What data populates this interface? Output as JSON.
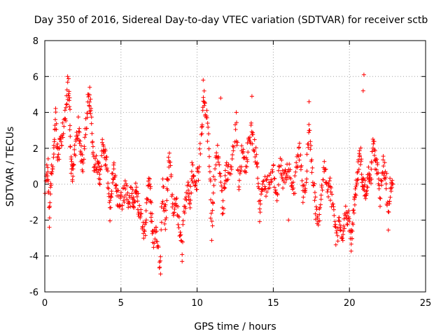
{
  "chart_data": {
    "type": "scatter",
    "title": "Day 350 of 2016, Sidereal Day-to-day VTEC variation (SDTVAR) for receiver sctb",
    "xlabel": "GPS time / hours",
    "ylabel": "SDTVAR / TECUs",
    "xlim": [
      0,
      25
    ],
    "ylim": [
      -6,
      8
    ],
    "xticks": [
      0,
      5,
      10,
      15,
      20,
      25
    ],
    "yticks": [
      -6,
      -4,
      -2,
      0,
      2,
      4,
      6,
      8
    ],
    "grid": true,
    "marker": "+",
    "series": [
      {
        "name": "SDTVAR",
        "color": "#ff0000",
        "anchors": [
          [
            0.05,
            0.0
          ],
          [
            0.2,
            1.2
          ],
          [
            0.3,
            -2.0
          ],
          [
            0.45,
            0.8
          ],
          [
            0.6,
            1.6
          ],
          [
            0.7,
            3.8
          ],
          [
            0.85,
            1.5
          ],
          [
            1.0,
            2.2
          ],
          [
            1.2,
            3.0
          ],
          [
            1.4,
            4.0
          ],
          [
            1.55,
            5.6
          ],
          [
            1.65,
            3.5
          ],
          [
            1.75,
            1.0
          ],
          [
            1.85,
            0.6
          ],
          [
            2.0,
            2.0
          ],
          [
            2.2,
            3.3
          ],
          [
            2.35,
            2.0
          ],
          [
            2.5,
            1.0
          ],
          [
            2.7,
            3.2
          ],
          [
            2.85,
            5.0
          ],
          [
            3.0,
            4.3
          ],
          [
            3.15,
            1.8
          ],
          [
            3.3,
            0.9
          ],
          [
            3.5,
            1.3
          ],
          [
            3.6,
            0.0
          ],
          [
            3.8,
            2.6
          ],
          [
            3.95,
            1.5
          ],
          [
            4.1,
            1.0
          ],
          [
            4.25,
            -1.8
          ],
          [
            4.4,
            0.0
          ],
          [
            4.55,
            1.0
          ],
          [
            4.7,
            -0.5
          ],
          [
            4.9,
            -1.0
          ],
          [
            5.1,
            -0.8
          ],
          [
            5.3,
            -0.3
          ],
          [
            5.5,
            -1.0
          ],
          [
            5.7,
            -0.6
          ],
          [
            5.85,
            -0.9
          ],
          [
            6.0,
            0.0
          ],
          [
            6.15,
            -1.2
          ],
          [
            6.35,
            -2.0
          ],
          [
            6.55,
            -3.0
          ],
          [
            6.7,
            -0.6
          ],
          [
            6.9,
            0.0
          ],
          [
            7.0,
            -1.8
          ],
          [
            7.15,
            -3.2
          ],
          [
            7.35,
            -2.5
          ],
          [
            7.55,
            -4.7
          ],
          [
            7.75,
            0.0
          ],
          [
            7.9,
            -2.2
          ],
          [
            8.05,
            0.0
          ],
          [
            8.2,
            1.6
          ],
          [
            8.4,
            -1.4
          ],
          [
            8.6,
            -1.1
          ],
          [
            8.8,
            -2.0
          ],
          [
            9.0,
            -3.8
          ],
          [
            9.2,
            -1.0
          ],
          [
            9.4,
            -0.2
          ],
          [
            9.55,
            -0.8
          ],
          [
            9.7,
            1.0
          ],
          [
            9.85,
            -0.2
          ],
          [
            10.05,
            0.4
          ],
          [
            10.3,
            2.8
          ],
          [
            10.45,
            5.0
          ],
          [
            10.6,
            3.8
          ],
          [
            10.8,
            2.0
          ],
          [
            10.95,
            -2.6
          ],
          [
            11.1,
            0.0
          ],
          [
            11.3,
            2.0
          ],
          [
            11.5,
            0.6
          ],
          [
            11.7,
            -1.6
          ],
          [
            11.85,
            0.6
          ],
          [
            12.05,
            0.8
          ],
          [
            12.3,
            1.2
          ],
          [
            12.55,
            3.8
          ],
          [
            12.75,
            -0.2
          ],
          [
            12.95,
            2.0
          ],
          [
            13.15,
            0.8
          ],
          [
            13.35,
            2.0
          ],
          [
            13.55,
            3.0
          ],
          [
            13.75,
            2.0
          ],
          [
            13.95,
            1.4
          ],
          [
            14.1,
            -2.0
          ],
          [
            14.3,
            0.2
          ],
          [
            14.5,
            -0.2
          ],
          [
            14.75,
            0.0
          ],
          [
            15.0,
            1.0
          ],
          [
            15.2,
            -0.8
          ],
          [
            15.45,
            1.2
          ],
          [
            15.65,
            0.2
          ],
          [
            15.85,
            0.6
          ],
          [
            16.1,
            0.8
          ],
          [
            16.3,
            -0.6
          ],
          [
            16.55,
            1.0
          ],
          [
            16.75,
            2.0
          ],
          [
            16.95,
            -0.8
          ],
          [
            17.15,
            0.4
          ],
          [
            17.35,
            3.2
          ],
          [
            17.55,
            0.8
          ],
          [
            17.75,
            -1.2
          ],
          [
            17.95,
            -2.6
          ],
          [
            18.15,
            -0.6
          ],
          [
            18.35,
            1.0
          ],
          [
            18.55,
            -0.4
          ],
          [
            18.75,
            -0.2
          ],
          [
            18.95,
            -1.4
          ],
          [
            19.15,
            -3.2
          ],
          [
            19.35,
            -2.0
          ],
          [
            19.55,
            -2.8
          ],
          [
            19.75,
            -1.6
          ],
          [
            19.95,
            -2.0
          ],
          [
            20.1,
            -3.2
          ],
          [
            20.25,
            -1.8
          ],
          [
            20.4,
            -0.4
          ],
          [
            20.55,
            0.6
          ],
          [
            20.7,
            2.0
          ],
          [
            20.85,
            0.4
          ],
          [
            20.95,
            0.0
          ],
          [
            21.1,
            -0.6
          ],
          [
            21.25,
            0.8
          ],
          [
            21.4,
            0.0
          ],
          [
            21.55,
            2.4
          ],
          [
            21.7,
            1.2
          ],
          [
            21.85,
            0.8
          ],
          [
            22.0,
            -0.8
          ],
          [
            22.2,
            1.2
          ],
          [
            22.35,
            0.6
          ],
          [
            22.55,
            -2.2
          ],
          [
            22.7,
            0.2
          ],
          [
            22.85,
            0.0
          ]
        ],
        "extra_points": [
          [
            1.5,
            6.0
          ],
          [
            2.95,
            5.4
          ],
          [
            20.95,
            6.1
          ],
          [
            20.9,
            5.2
          ],
          [
            10.4,
            5.8
          ],
          [
            11.55,
            4.8
          ],
          [
            13.6,
            4.9
          ],
          [
            16.0,
            -2.0
          ],
          [
            17.35,
            4.6
          ],
          [
            0.3,
            -2.4
          ],
          [
            7.6,
            -5.0
          ],
          [
            22.45,
            0.6
          ]
        ]
      }
    ]
  }
}
